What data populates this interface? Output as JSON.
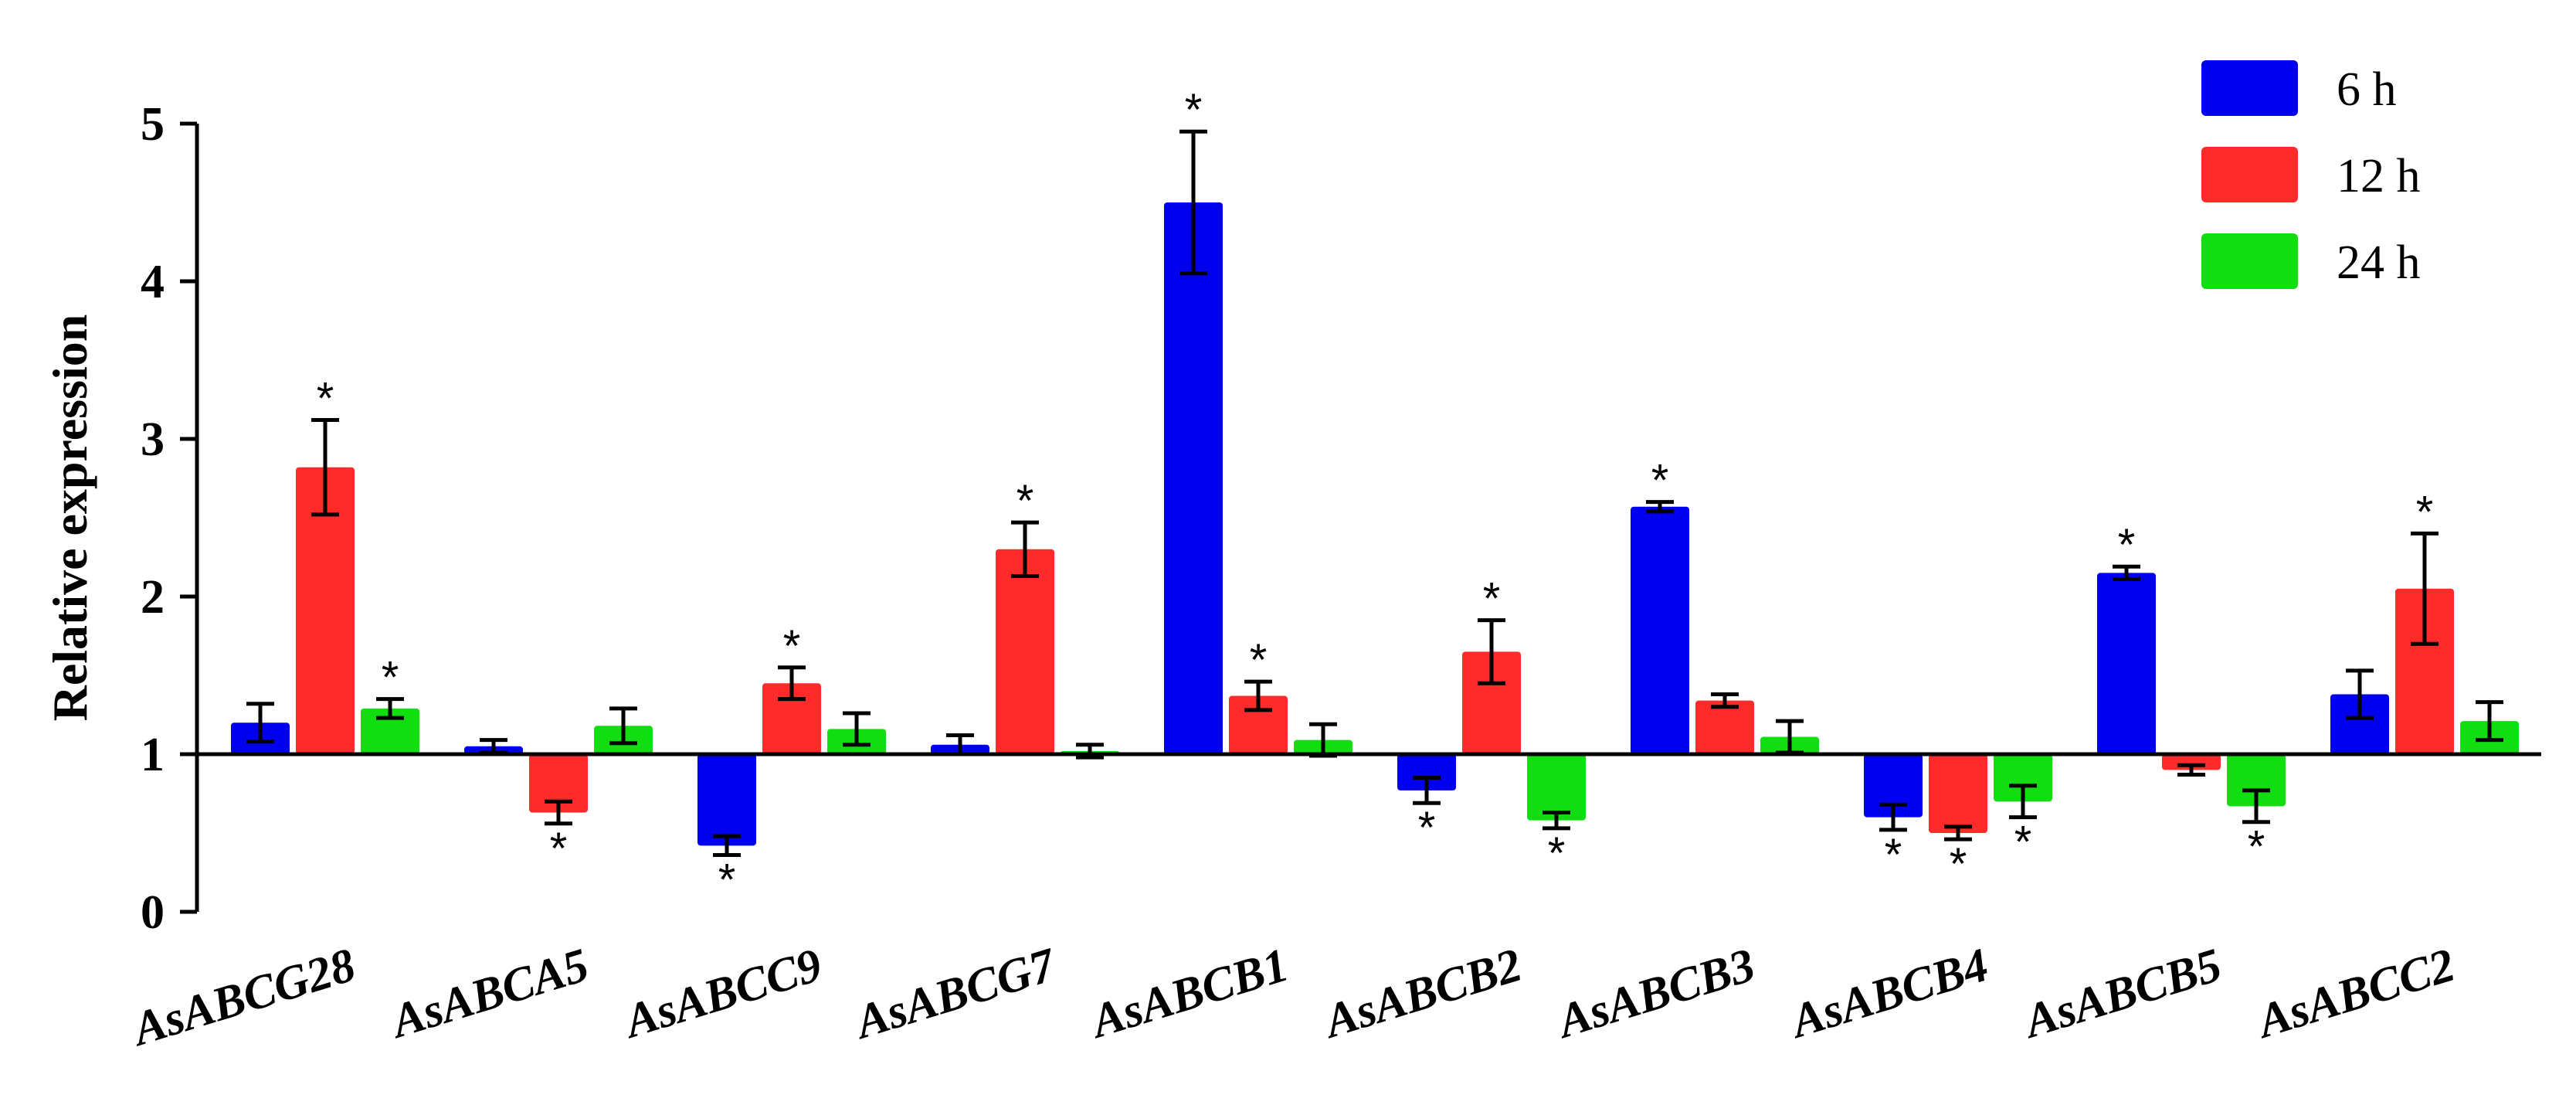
{
  "chart_data": {
    "type": "bar",
    "title": "",
    "xlabel": "",
    "ylabel": "Relative expression",
    "ylim": [
      0,
      5
    ],
    "yticks": [
      0,
      1,
      2,
      3,
      4,
      5
    ],
    "baseline": 1,
    "grid": false,
    "legend_position": "top-right",
    "categories": [
      "AsABCG28",
      "AsABCA5",
      "AsABCC9",
      "AsABCG7",
      "AsABCB1",
      "AsABCB2",
      "AsABCB3",
      "AsABCB4",
      "AsABCB5",
      "AsABCC2"
    ],
    "series": [
      {
        "name": "6 h",
        "color": "#0000ee",
        "values": [
          1.2,
          1.05,
          0.42,
          1.06,
          4.5,
          0.77,
          2.57,
          0.6,
          2.15,
          1.38
        ],
        "errors": [
          0.12,
          0.04,
          0.06,
          0.06,
          0.45,
          0.08,
          0.03,
          0.08,
          0.04,
          0.15
        ],
        "significant": [
          false,
          false,
          true,
          false,
          true,
          true,
          true,
          true,
          true,
          false
        ]
      },
      {
        "name": "12 h",
        "color": "#ff2a2a",
        "values": [
          2.82,
          0.63,
          1.45,
          2.3,
          1.37,
          1.65,
          1.34,
          0.5,
          0.9,
          2.05
        ],
        "errors": [
          0.3,
          0.07,
          0.1,
          0.17,
          0.09,
          0.2,
          0.04,
          0.04,
          0.03,
          0.35
        ],
        "significant": [
          true,
          true,
          true,
          true,
          true,
          true,
          false,
          true,
          false,
          true
        ]
      },
      {
        "name": "24 h",
        "color": "#11dd11",
        "values": [
          1.29,
          1.18,
          1.16,
          1.02,
          1.09,
          0.58,
          1.11,
          0.7,
          0.67,
          1.21
        ],
        "errors": [
          0.06,
          0.11,
          0.1,
          0.04,
          0.1,
          0.05,
          0.1,
          0.1,
          0.1,
          0.12
        ],
        "significant": [
          true,
          false,
          false,
          false,
          false,
          true,
          false,
          true,
          true,
          false
        ]
      }
    ],
    "significance_marker": "*"
  }
}
